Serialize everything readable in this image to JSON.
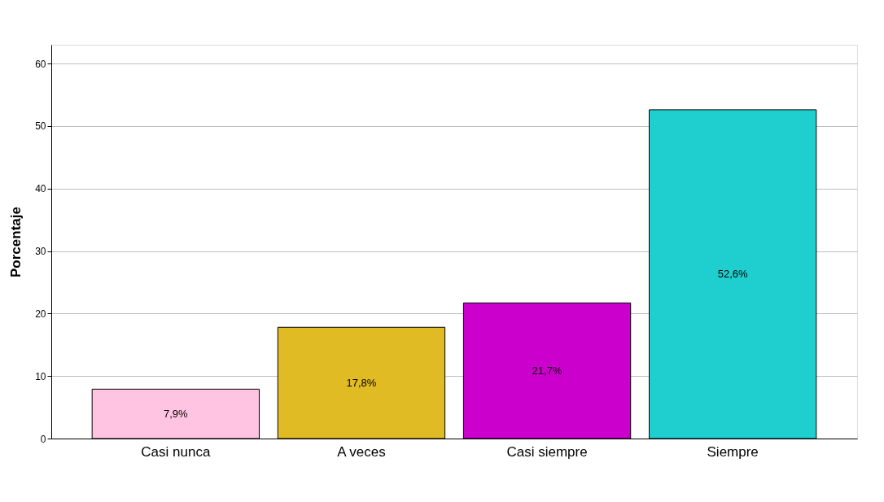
{
  "chart_data": {
    "type": "bar",
    "ylabel": "Porcentaje",
    "categories": [
      "Casi nunca",
      "A veces",
      "Casi siempre",
      "Siempre"
    ],
    "values": [
      7.9,
      17.8,
      21.7,
      52.6
    ],
    "colors": [
      "#ffc4e1",
      "#e1bb23",
      "#cc00cc",
      "#1fcfcf"
    ],
    "value_labels": [
      "7,9%",
      "17,8%",
      "21,7%",
      "52,6%"
    ],
    "ylim": [
      0,
      63
    ],
    "yticks": [
      0,
      10,
      20,
      30,
      40,
      50,
      60
    ],
    "grid": "y"
  }
}
